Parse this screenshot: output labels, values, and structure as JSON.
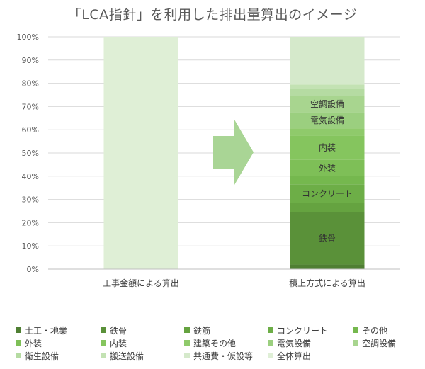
{
  "chart_data": {
    "type": "bar",
    "stacked": true,
    "title": "「LCA指針」を利用した排出量算出のイメージ",
    "xlabel": "",
    "ylabel": "",
    "ylim": [
      0,
      100
    ],
    "yticks": [
      "0%",
      "10%",
      "20%",
      "30%",
      "40%",
      "50%",
      "60%",
      "70%",
      "80%",
      "90%",
      "100%"
    ],
    "categories": [
      "工事金額による算出",
      "積上方式による算出"
    ],
    "series": [
      {
        "name": "土工・地業",
        "color": "#4f7f33",
        "values": [
          0,
          2
        ],
        "label": ""
      },
      {
        "name": "鉄骨",
        "color": "#5a9139",
        "values": [
          0,
          22.5
        ],
        "label": "鉄骨"
      },
      {
        "name": "鉄筋",
        "color": "#65a340",
        "values": [
          0,
          4
        ],
        "label": ""
      },
      {
        "name": "コンクリート",
        "color": "#6dae47",
        "values": [
          0,
          8
        ],
        "label": "コンクリート"
      },
      {
        "name": "その他",
        "color": "#75b84e",
        "values": [
          0,
          3.5
        ],
        "label": ""
      },
      {
        "name": "外装",
        "color": "#7ebf57",
        "values": [
          0,
          7
        ],
        "label": "外装"
      },
      {
        "name": "内装",
        "color": "#85c55e",
        "values": [
          0,
          10.5
        ],
        "label": "内装"
      },
      {
        "name": "建築その他",
        "color": "#8fca6b",
        "values": [
          0,
          3
        ],
        "label": ""
      },
      {
        "name": "電気設備",
        "color": "#9bcf7f",
        "values": [
          0,
          7
        ],
        "label": "電気設備"
      },
      {
        "name": "空調設備",
        "color": "#a8d58f",
        "values": [
          0,
          7
        ],
        "label": "空調設備"
      },
      {
        "name": "衛生設備",
        "color": "#b5dba2",
        "values": [
          0,
          3
        ],
        "label": ""
      },
      {
        "name": "搬送設備",
        "color": "#c3e2b3",
        "values": [
          0,
          2
        ],
        "label": ""
      },
      {
        "name": "共通費・仮設等",
        "color": "#d5e9cb",
        "values": [
          0,
          20.5
        ],
        "label": ""
      },
      {
        "name": "全体算出",
        "color": "#dfefd6",
        "values": [
          100,
          0
        ],
        "label": ""
      }
    ],
    "grid": true,
    "legend": "bottom",
    "annotation": {
      "type": "arrow",
      "direction": "right",
      "color": "#a9d595"
    }
  }
}
